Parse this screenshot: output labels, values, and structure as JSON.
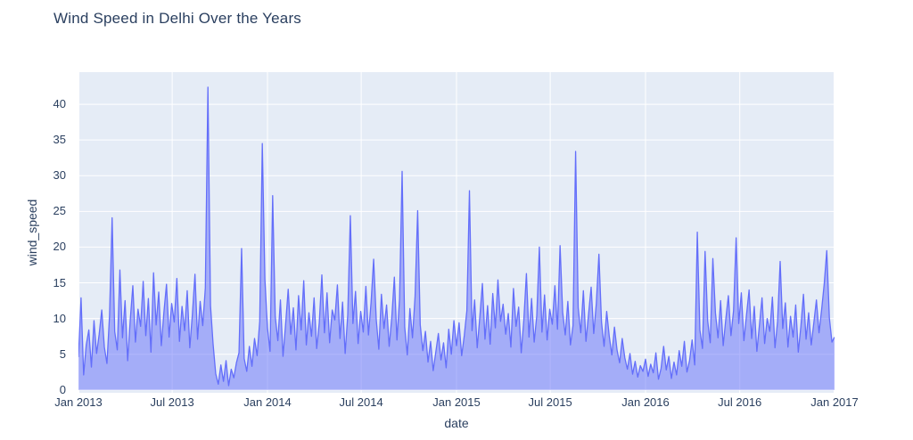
{
  "page": {
    "background": "#ffffff"
  },
  "chart_data": {
    "type": "area",
    "title": "Wind Speed in Delhi Over the Years",
    "xlabel": "date",
    "ylabel": "wind_speed",
    "legend": false,
    "grid": true,
    "plot_bg": "#e5ecf6",
    "grid_color": "#ffffff",
    "text_color": "#2a3f5f",
    "line_color": "#636efa",
    "fill_color": "rgba(99,110,250,0.5)",
    "x_start_date": "2013-01-01",
    "x_end_date": "2017-01-01",
    "point_interval_days": 5,
    "x_tick_labels": [
      "Jan 2013",
      "Jul 2013",
      "Jan 2014",
      "Jul 2014",
      "Jan 2015",
      "Jul 2015",
      "Jan 2016",
      "Jul 2016",
      "Jan 2017"
    ],
    "x_tick_days": [
      0,
      181,
      365,
      546,
      730,
      911,
      1095,
      1277,
      1460
    ],
    "yticks": [
      0,
      5,
      10,
      15,
      20,
      25,
      30,
      35,
      40
    ],
    "ylim": [
      -0.4,
      44.5
    ],
    "notable_peaks": [
      {
        "date": "2013-09-07",
        "value": 42.4
      },
      {
        "date": "2013-12-22",
        "value": 34.5
      },
      {
        "date": "2015-08-16",
        "value": 33.4
      },
      {
        "date": "2014-09-20",
        "value": 30.6
      },
      {
        "date": "2015-01-25",
        "value": 27.9
      },
      {
        "date": "2014-01-09",
        "value": 27.2
      },
      {
        "date": "2014-10-16",
        "value": 25.1
      },
      {
        "date": "2014-06-12",
        "value": 24.4
      },
      {
        "date": "2013-03-09",
        "value": 24.1
      },
      {
        "date": "2016-04-10",
        "value": 22.1
      },
      {
        "date": "2016-06-24",
        "value": 21.3
      },
      {
        "date": "2013-11-14",
        "value": 19.8
      },
      {
        "date": "2016-12-16",
        "value": 19.5
      }
    ],
    "series": [
      {
        "name": "wind_speed",
        "values": [
          4.6,
          12.9,
          2.1,
          6.3,
          8.4,
          3.2,
          9.7,
          5.1,
          7.8,
          11.2,
          6.0,
          3.7,
          10.4,
          24.1,
          8.2,
          5.6,
          16.8,
          7.3,
          12.5,
          4.1,
          9.8,
          14.6,
          6.7,
          11.3,
          8.9,
          15.2,
          7.6,
          12.8,
          5.3,
          16.4,
          9.1,
          13.7,
          6.2,
          10.9,
          14.8,
          7.4,
          12.1,
          9.5,
          15.6,
          6.8,
          11.7,
          8.3,
          13.9,
          5.9,
          10.6,
          16.2,
          7.1,
          12.4,
          9.0,
          14.3,
          42.4,
          11.8,
          6.4,
          2.3,
          0.8,
          3.5,
          1.2,
          4.1,
          0.6,
          2.9,
          1.7,
          3.8,
          5.2,
          19.8,
          4.4,
          2.6,
          6.1,
          3.3,
          7.2,
          4.8,
          9.6,
          34.5,
          15.5,
          8.7,
          5.4,
          27.2,
          10.3,
          6.9,
          12.6,
          4.7,
          9.2,
          14.1,
          7.8,
          11.5,
          5.6,
          13.2,
          8.4,
          15.3,
          6.3,
          10.8,
          7.5,
          12.9,
          5.8,
          9.4,
          16.1,
          8.0,
          13.6,
          6.6,
          11.2,
          9.8,
          14.7,
          7.2,
          12.3,
          5.1,
          10.5,
          24.4,
          9.3,
          13.8,
          6.5,
          11.0,
          8.1,
          14.5,
          7.7,
          12.2,
          18.3,
          9.9,
          5.7,
          13.4,
          8.6,
          11.9,
          6.1,
          10.1,
          15.8,
          7.0,
          12.7,
          30.6,
          8.8,
          4.9,
          11.4,
          7.3,
          13.1,
          25.1,
          9.1,
          5.5,
          8.2,
          3.9,
          6.8,
          2.7,
          5.3,
          7.9,
          4.2,
          6.6,
          3.1,
          8.5,
          5.0,
          9.7,
          6.2,
          9.4,
          4.8,
          7.6,
          11.1,
          27.9,
          8.3,
          12.6,
          5.9,
          10.2,
          14.9,
          7.1,
          11.8,
          6.4,
          13.5,
          8.7,
          15.4,
          9.6,
          12.0,
          7.8,
          10.7,
          6.0,
          14.2,
          8.9,
          11.6,
          5.2,
          9.8,
          16.3,
          7.4,
          12.8,
          6.7,
          10.4,
          20.0,
          8.1,
          13.3,
          7.0,
          11.3,
          9.2,
          14.6,
          8.5,
          20.2,
          10.9,
          7.7,
          12.4,
          6.3,
          9.0,
          33.4,
          11.5,
          8.0,
          13.9,
          6.8,
          10.6,
          14.4,
          7.9,
          12.1,
          19.0,
          9.5,
          6.1,
          11.0,
          7.5,
          4.9,
          8.8,
          5.6,
          3.8,
          7.2,
          4.5,
          2.9,
          5.1,
          2.2,
          4.0,
          1.8,
          3.4,
          2.6,
          4.3,
          1.9,
          3.6,
          2.4,
          5.2,
          1.5,
          3.0,
          6.1,
          2.8,
          4.7,
          1.6,
          3.9,
          2.1,
          5.5,
          3.3,
          6.8,
          2.5,
          4.1,
          7.0,
          3.5,
          22.1,
          8.4,
          5.8,
          19.4,
          9.7,
          6.6,
          18.4,
          10.8,
          7.3,
          12.5,
          6.2,
          9.9,
          13.2,
          7.6,
          11.1,
          21.3,
          9.3,
          13.6,
          6.9,
          10.5,
          14.0,
          7.2,
          11.7,
          5.4,
          9.1,
          12.9,
          6.5,
          10.0,
          8.2,
          13.0,
          5.9,
          9.6,
          18.0,
          8.6,
          12.2,
          6.0,
          10.3,
          7.4,
          11.9,
          5.3,
          8.9,
          13.4,
          7.1,
          10.8,
          6.3,
          9.4,
          12.6,
          8.0,
          11.2,
          14.8,
          19.5,
          10.1,
          6.7,
          7.4
        ]
      }
    ]
  }
}
